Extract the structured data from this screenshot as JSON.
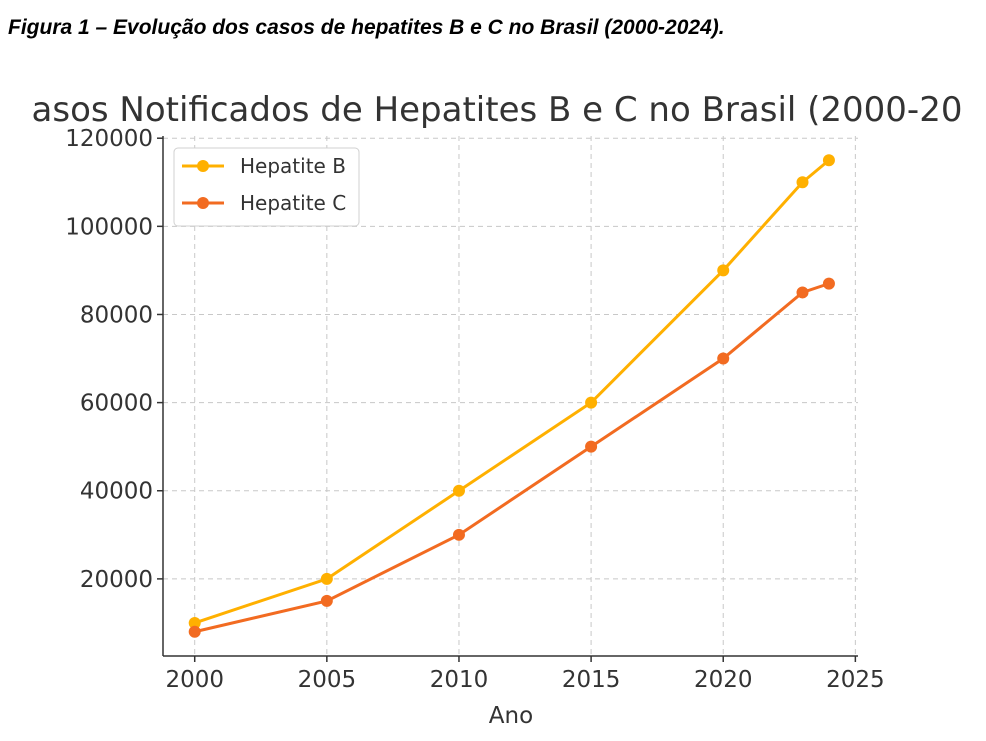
{
  "caption": "Figura 1 – Evolução dos casos de hepatites B e C no Brasil (2000-2024).",
  "chart_data": {
    "type": "line",
    "title": "asos Notificados de Hepatites B e C no Brasil (2000-20",
    "xlabel": "Ano",
    "ylabel": "",
    "x": [
      2000,
      2005,
      2010,
      2015,
      2020,
      2023,
      2024
    ],
    "series": [
      {
        "name": "Hepatite B",
        "color": "#FFB000",
        "values": [
          10000,
          20000,
          40000,
          60000,
          90000,
          110000,
          115000
        ]
      },
      {
        "name": "Hepatite C",
        "color": "#F26B21",
        "values": [
          8000,
          15000,
          30000,
          50000,
          70000,
          85000,
          87000
        ]
      }
    ],
    "xticks": [
      "2000",
      "2005",
      "2010",
      "2015",
      "2020",
      "2025"
    ],
    "yticks": [
      "20000",
      "40000",
      "60000",
      "80000",
      "100000",
      "120000"
    ],
    "xlim": [
      1998.8,
      2025.1
    ],
    "ylim": [
      2500,
      120500
    ],
    "grid": true,
    "legend_position": "top-left"
  }
}
